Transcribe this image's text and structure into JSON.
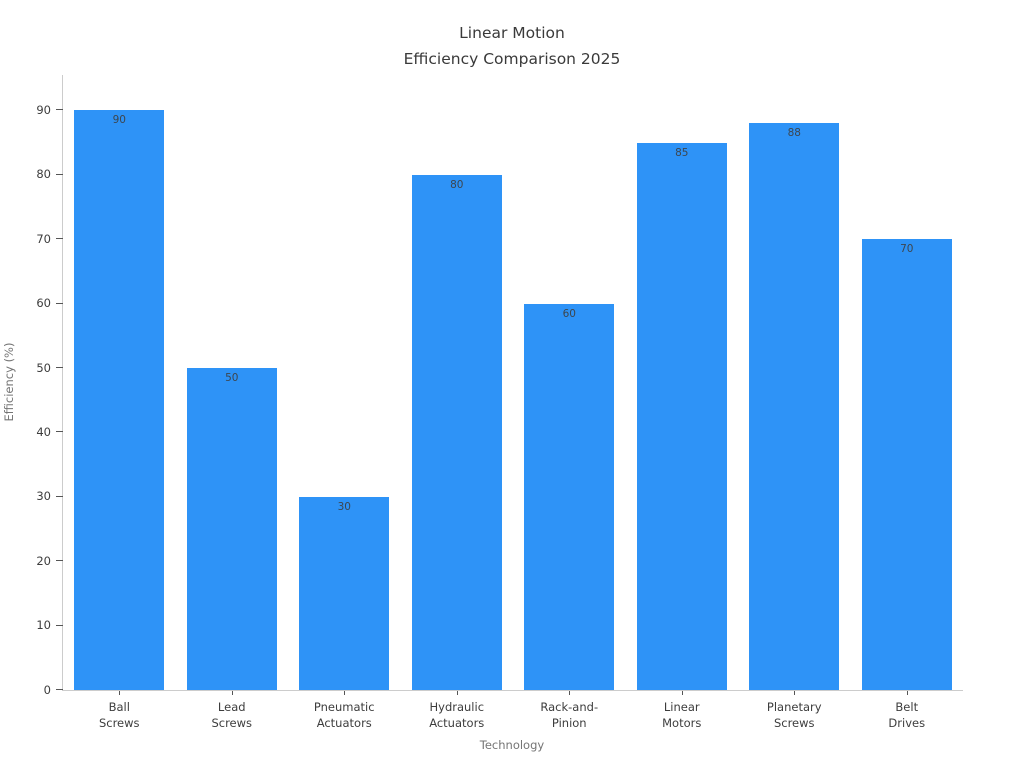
{
  "chart_data": {
    "type": "bar",
    "title": "Linear Motion\nEfficiency Comparison 2025",
    "categories": [
      "Ball\nScrews",
      "Lead\nScrews",
      "Pneumatic\nActuators",
      "Hydraulic\nActuators",
      "Rack-and-\nPinion",
      "Linear\nMotors",
      "Planetary\nScrews",
      "Belt\nDrives"
    ],
    "values": [
      90,
      50,
      30,
      80,
      60,
      85,
      88,
      70
    ],
    "bar_value_labels": [
      "90",
      "50",
      "30",
      "80",
      "60",
      "85",
      "88",
      "70"
    ],
    "xlabel": "Technology",
    "ylabel": "Efficiency (%)",
    "ylim": [
      0,
      95.5
    ],
    "yticks": [
      0,
      10,
      20,
      30,
      40,
      50,
      60,
      70,
      80,
      90
    ],
    "grid": false,
    "legend_position": "none",
    "bar_color": "#2e93f7",
    "title_color": "#3a3a3a",
    "axis_label_color": "#757575",
    "tick_label_color": "#3d3d3d",
    "spine_color": "#cccccc"
  }
}
